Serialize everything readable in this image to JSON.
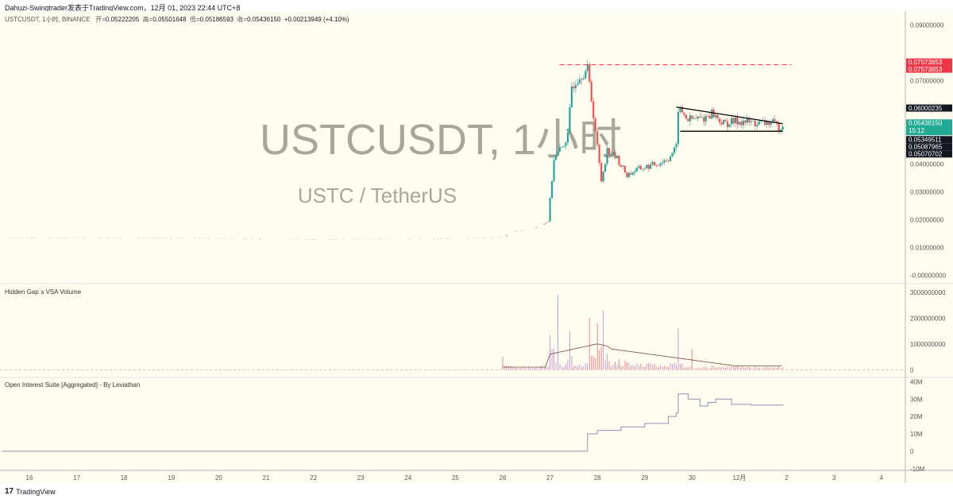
{
  "header": {
    "publisher": "Dahuzi-Swingtrader发表于TradingView.com，12月 01, 2023 22:44 UTC+8"
  },
  "legend": {
    "symbol": "USTCUSDT, 1小时, BINANCE",
    "open_label": "开=",
    "open": "0.05222205",
    "high_label": "高=",
    "high": "0.05501648",
    "low_label": "低=",
    "low": "0.05186593",
    "close_label": "收=",
    "close": "0.05436150",
    "change": "+0.00213949 (+4.10%)"
  },
  "watermark": {
    "title": "USTCUSDT, 1小时",
    "subtitle": "USTC / TetherUS"
  },
  "panes": {
    "volume_title": "Hidden Gap`s VSA Volume",
    "oi_title": "Open Interest Suite [Aggregated] - By Leviathan"
  },
  "footer": {
    "brand": "TradingView"
  },
  "colors": {
    "up": "#26a69a",
    "down": "#ef5350",
    "background": "#fffdf0",
    "red_label": "#f23645",
    "teal_label": "#22ab94"
  },
  "chart_data": [
    {
      "type": "candlestick",
      "title": "USTCUSDT, 1小时",
      "ylim": [
        -0.003,
        0.095
      ],
      "yticks": [
        "0.09000000",
        "0.07000000",
        "0.04000000",
        "0.03000000",
        "0.02000000",
        "0.01000000",
        "-0.00000000"
      ],
      "ytick_values": [
        0.09,
        0.07,
        0.04,
        0.03,
        0.02,
        0.01,
        0
      ],
      "xticks": [
        "16",
        "17",
        "18",
        "19",
        "20",
        "21",
        "22",
        "23",
        "24",
        "25",
        "26",
        "27",
        "28",
        "29",
        "30",
        "12月",
        "2",
        "3",
        "4"
      ],
      "close_path": [
        [
          "11-15 10:00",
          0.0135
        ],
        [
          "11-18 00:00",
          0.0134
        ],
        [
          "11-20 00:00",
          0.0133
        ],
        [
          "11-22 00:00",
          0.0128
        ],
        [
          "11-23 00:00",
          0.0131
        ],
        [
          "11-25 00:00",
          0.0133
        ],
        [
          "11-26 00:00",
          0.0136
        ],
        [
          "11-26 04:00",
          0.0155
        ],
        [
          "11-26 18:00",
          0.0172
        ],
        [
          "11-26 23:00",
          0.0195
        ],
        [
          "11-27 02:00",
          0.042
        ],
        [
          "11-27 06:00",
          0.046
        ],
        [
          "11-27 09:00",
          0.05
        ],
        [
          "11-27 11:00",
          0.068
        ],
        [
          "11-27 15:00",
          0.072
        ],
        [
          "11-27 19:00",
          0.074
        ],
        [
          "11-27 22:00",
          0.058
        ],
        [
          "11-28 02:00",
          0.034
        ],
        [
          "11-28 05:00",
          0.045
        ],
        [
          "11-28 10:00",
          0.042
        ],
        [
          "11-28 15:00",
          0.036
        ],
        [
          "11-28 20:00",
          0.038
        ],
        [
          "11-29 06:00",
          0.04
        ],
        [
          "11-29 12:00",
          0.042
        ],
        [
          "11-29 16:00",
          0.046
        ],
        [
          "11-29 17:00",
          0.06
        ],
        [
          "11-29 22:00",
          0.056
        ],
        [
          "11-30 06:00",
          0.0565
        ],
        [
          "11-30 10:00",
          0.0585
        ],
        [
          "11-30 16:00",
          0.0545
        ],
        [
          "12-01 00:00",
          0.0555
        ],
        [
          "12-01 10:00",
          0.0545
        ],
        [
          "12-01 16:00",
          0.055
        ],
        [
          "12-01 20:00",
          0.0532
        ],
        [
          "12-01 22:00",
          0.05436
        ]
      ],
      "price_labels": [
        {
          "value": "0.07573853",
          "color": "#f23645"
        },
        {
          "value": "0.07573853",
          "color": "#f23645"
        },
        {
          "value": "0.06000235",
          "color": "#131722"
        },
        {
          "value": "0.05436150",
          "sub": "15:12",
          "color": "#22ab94"
        },
        {
          "value": "0.05349511",
          "color": "#131722"
        },
        {
          "value": "0.05087965",
          "color": "#131722"
        },
        {
          "value": "0.05070702",
          "color": "#131722"
        }
      ],
      "drawings": {
        "resistance": 0.0757,
        "triangle_upper": [
          [
            "11-29 16:00",
            0.0605
          ],
          [
            "12-01 22:00",
            0.0545
          ]
        ],
        "triangle_lower": [
          [
            "11-29 18:00",
            0.0518
          ],
          [
            "12-01 22:00",
            0.0518
          ]
        ]
      }
    },
    {
      "type": "bar",
      "title": "Hidden Gap`s VSA Volume",
      "ylim": [
        -300000000,
        3300000000
      ],
      "yticks": [
        "3000000000",
        "2000000000",
        "1000000000",
        "0"
      ],
      "ytick_values": [
        3000000000,
        2000000000,
        1000000000,
        0
      ],
      "peaks": [
        [
          "11-23 12:00",
          300000000
        ],
        [
          "11-26 00:00",
          500000000
        ],
        [
          "11-27 01:00",
          800000000
        ],
        [
          "11-27 04:00",
          2900000000
        ],
        [
          "11-27 10:00",
          1500000000
        ],
        [
          "11-27 20:00",
          2000000000
        ],
        [
          "11-28 00:00",
          1800000000
        ],
        [
          "11-28 03:00",
          2300000000
        ],
        [
          "11-29 17:00",
          1600000000
        ],
        [
          "11-30 00:00",
          800000000
        ]
      ]
    },
    {
      "type": "line",
      "title": "Open Interest Suite [Aggregated] - By Leviathan",
      "ylim": [
        -11000000,
        42000000
      ],
      "yticks": [
        "40M",
        "30M",
        "20M",
        "10M",
        "0",
        "-10M"
      ],
      "ytick_values": [
        40000000,
        30000000,
        20000000,
        10000000,
        0,
        -10000000
      ],
      "points": [
        [
          "11-15 10:00",
          0
        ],
        [
          "11-27 18:00",
          0
        ],
        [
          "11-27 19:00",
          10000000
        ],
        [
          "11-28 00:00",
          12000000
        ],
        [
          "11-28 12:00",
          14000000
        ],
        [
          "11-29 00:00",
          16000000
        ],
        [
          "11-29 12:00",
          20000000
        ],
        [
          "11-29 16:00",
          22000000
        ],
        [
          "11-29 17:00",
          33000000
        ],
        [
          "11-29 22:00",
          30000000
        ],
        [
          "11-30 04:00",
          26000000
        ],
        [
          "11-30 08:00",
          28000000
        ],
        [
          "11-30 12:00",
          30000000
        ],
        [
          "11-30 20:00",
          27000000
        ],
        [
          "12-01 06:00",
          26500000
        ],
        [
          "12-01 22:00",
          27000000
        ]
      ]
    }
  ]
}
